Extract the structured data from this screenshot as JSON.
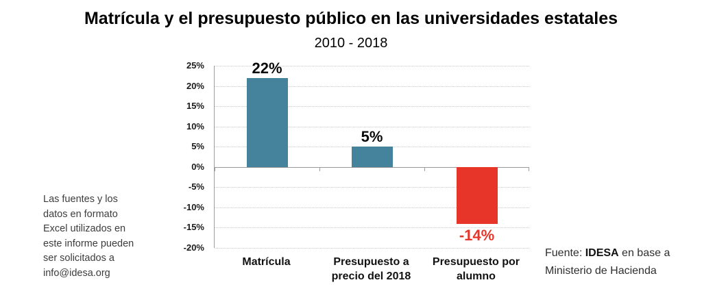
{
  "chart_data": {
    "type": "bar",
    "title": "Matrícula y el presupuesto público en las universidades estatales",
    "subtitle": "2010 - 2018",
    "categories": [
      "Matrícula",
      "Presupuesto a precio del 2018",
      "Presupuesto por alumno"
    ],
    "values": [
      22,
      5,
      -14
    ],
    "bar_labels": [
      "22%",
      "5%",
      "-14%"
    ],
    "bar_colors": [
      "#45829B",
      "#45829B",
      "#E8352A"
    ],
    "bar_label_colors": [
      "#0a0a0a",
      "#0a0a0a",
      "#E8352A"
    ],
    "ylim": [
      -20,
      25
    ],
    "yticks": [
      25,
      20,
      15,
      10,
      5,
      0,
      -5,
      -10,
      -15,
      -20
    ],
    "ytick_labels": [
      "25%",
      "20%",
      "15%",
      "10%",
      "5%",
      "0%",
      "-5%",
      "-10%",
      "-15%",
      "-20%"
    ],
    "grid": "horizontal-dotted",
    "legend": "none",
    "zero_line": "solid",
    "axis_color": "#9c9c9c"
  },
  "side_note": {
    "lines": [
      "Las fuentes y los",
      "datos en formato",
      "Excel utilizados en",
      "este informe pueden",
      "ser solicitados a",
      "info@idesa.org"
    ]
  },
  "source": {
    "prefix": "Fuente: ",
    "org": "IDESA",
    "suffix": " en base a",
    "line2": "Ministerio de Hacienda"
  }
}
